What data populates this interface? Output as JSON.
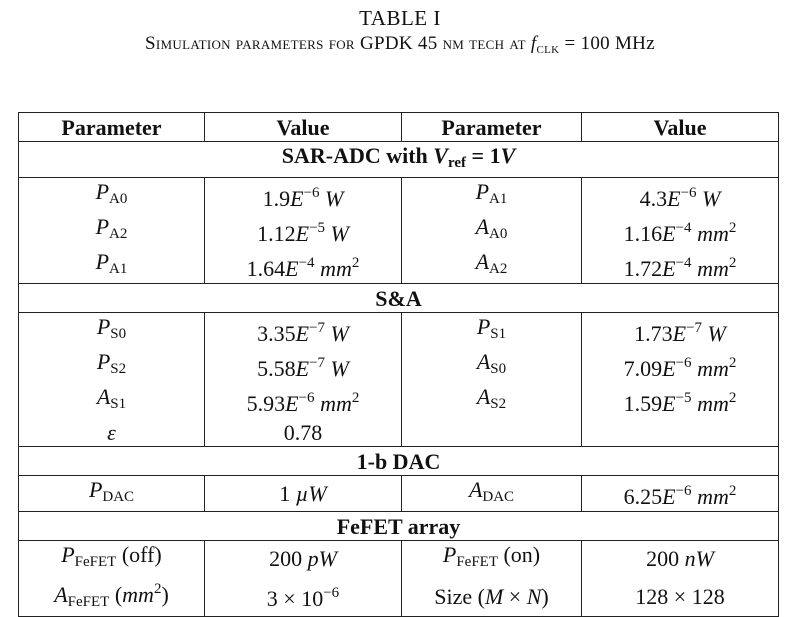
{
  "caption": {
    "line1": "TABLE I",
    "line2": "Simulation parameters for GPDK 45 nm tech at fCLK = 100 MHz"
  },
  "headers": [
    "Parameter",
    "Value",
    "Parameter",
    "Value"
  ],
  "sections": [
    {
      "title": "SAR-ADC with Vref = 1V",
      "rows": [
        [
          "PA0",
          "1.9E−6 W",
          "PA1",
          "4.3E−6 W"
        ],
        [
          "PA2",
          "1.12E−5 W",
          "AA0",
          "1.16E−4 mm2"
        ],
        [
          "PA1",
          "1.64E−4 mm2",
          "AA2",
          "1.72E−4 mm2"
        ]
      ]
    },
    {
      "title": "S&A",
      "rows": [
        [
          "PS0",
          "3.35E−7 W",
          "PS1",
          "1.73E−7 W"
        ],
        [
          "PS2",
          "5.58E−7 W",
          "AS0",
          "7.09E−6 mm2"
        ],
        [
          "AS1",
          "5.93E−6 mm2",
          "AS2",
          "1.59E−5 mm2"
        ],
        [
          "ε",
          "0.78",
          "",
          ""
        ]
      ]
    },
    {
      "title": "1-b DAC",
      "rows": [
        [
          "PDAC",
          "1 µW",
          "ADAC",
          "6.25E−6 mm2"
        ]
      ]
    },
    {
      "title": "FeFET array",
      "rows": [
        [
          "PFeFET (off)",
          "200 pW",
          "PFeFET (on)",
          "200 nW"
        ],
        [
          "AFeFET (mm2)",
          "3 × 10−6",
          "Size (M × N)",
          "128 × 128"
        ]
      ]
    }
  ]
}
